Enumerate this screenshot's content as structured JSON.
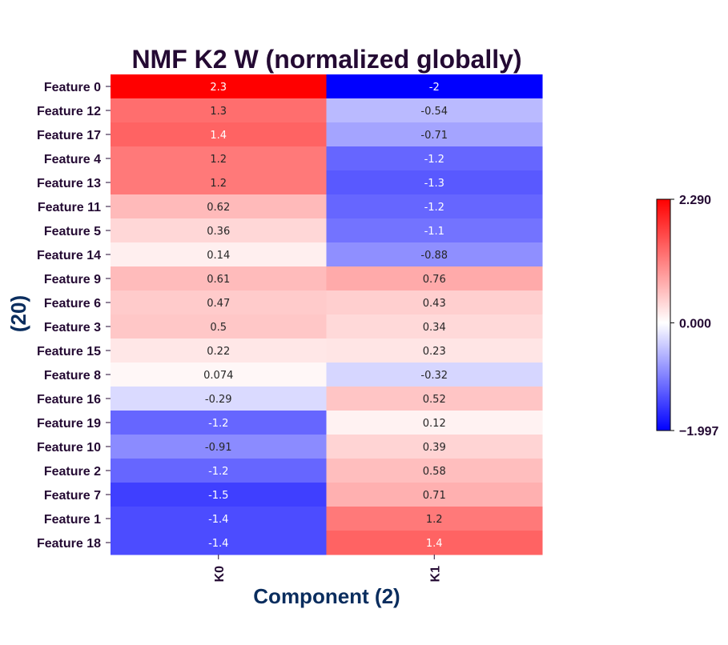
{
  "chart_data": {
    "type": "heatmap",
    "title": "NMF K2 W (normalized globally)",
    "xlabel": "Component (2)",
    "ylabel": "(20)",
    "columns": [
      "K0",
      "K1"
    ],
    "rows": [
      "Feature 0",
      "Feature 12",
      "Feature 17",
      "Feature 4",
      "Feature 13",
      "Feature 11",
      "Feature 5",
      "Feature 14",
      "Feature 9",
      "Feature 6",
      "Feature 3",
      "Feature 15",
      "Feature 8",
      "Feature 16",
      "Feature 19",
      "Feature 10",
      "Feature 2",
      "Feature 7",
      "Feature 1",
      "Feature 18"
    ],
    "values": [
      [
        2.29,
        -1.997
      ],
      [
        1.3,
        -0.54
      ],
      [
        1.4,
        -0.71
      ],
      [
        1.2,
        -1.2
      ],
      [
        1.2,
        -1.3
      ],
      [
        0.62,
        -1.2
      ],
      [
        0.36,
        -1.1
      ],
      [
        0.14,
        -0.88
      ],
      [
        0.61,
        0.76
      ],
      [
        0.47,
        0.43
      ],
      [
        0.5,
        0.34
      ],
      [
        0.22,
        0.23
      ],
      [
        0.074,
        -0.32
      ],
      [
        -0.29,
        0.52
      ],
      [
        -1.2,
        0.12
      ],
      [
        -0.91,
        0.39
      ],
      [
        -1.2,
        0.58
      ],
      [
        -1.5,
        0.71
      ],
      [
        -1.4,
        1.2
      ],
      [
        -1.4,
        1.4
      ]
    ],
    "annotations": [
      [
        "2.3",
        "-2"
      ],
      [
        "1.3",
        "-0.54"
      ],
      [
        "1.4",
        "-0.71"
      ],
      [
        "1.2",
        "-1.2"
      ],
      [
        "1.2",
        "-1.3"
      ],
      [
        "0.62",
        "-1.2"
      ],
      [
        "0.36",
        "-1.1"
      ],
      [
        "0.14",
        "-0.88"
      ],
      [
        "0.61",
        "0.76"
      ],
      [
        "0.47",
        "0.43"
      ],
      [
        "0.5",
        "0.34"
      ],
      [
        "0.22",
        "0.23"
      ],
      [
        "0.074",
        "-0.32"
      ],
      [
        "-0.29",
        "0.52"
      ],
      [
        "-1.2",
        "0.12"
      ],
      [
        "-0.91",
        "0.39"
      ],
      [
        "-1.2",
        "0.58"
      ],
      [
        "-1.5",
        "0.71"
      ],
      [
        "-1.4",
        "1.2"
      ],
      [
        "-1.4",
        "1.4"
      ]
    ],
    "colormap": "bwr",
    "vmin": -1.997,
    "vmax": 2.29,
    "center": 0,
    "colorbar": {
      "ticks": [
        "2.290",
        "0.000",
        "−1.997"
      ]
    },
    "colors": {
      "title": "#240a33",
      "axis_label": "#0a2d5e",
      "tick_label": "#240a33",
      "max": "#ff0000",
      "mid": "#ffffff",
      "min": "#0000ff"
    }
  }
}
